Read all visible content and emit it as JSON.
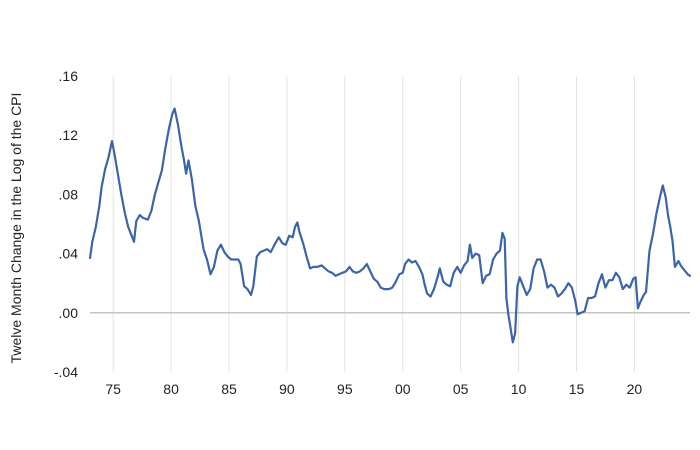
{
  "chart_data": {
    "type": "line",
    "title": "",
    "xlabel": "",
    "ylabel": "Twelve Month Change in the Log of the CPI",
    "xlim": [
      1973,
      2024.8
    ],
    "ylim": [
      -0.04,
      0.16
    ],
    "y_ticks": [
      -0.04,
      0.0,
      0.04,
      0.08,
      0.12,
      0.16
    ],
    "y_tick_labels": [
      "-.04",
      ".00",
      ".04",
      ".08",
      ".12",
      ".16"
    ],
    "x_ticks": [
      1975,
      1980,
      1985,
      1990,
      1995,
      2000,
      2005,
      2010,
      2015,
      2020
    ],
    "x_tick_labels": [
      "75",
      "80",
      "85",
      "90",
      "95",
      "00",
      "05",
      "10",
      "15",
      "20"
    ],
    "grid": "vertical",
    "zero_line": true,
    "colors": {
      "series": "#3b65a8",
      "grid": "#e3e3e3",
      "zero_line": "#c4c4c4"
    },
    "series": [
      {
        "values": [
          [
            1973.0,
            0.037
          ],
          [
            1973.2,
            0.048
          ],
          [
            1973.5,
            0.058
          ],
          [
            1973.8,
            0.072
          ],
          [
            1974.0,
            0.085
          ],
          [
            1974.3,
            0.097
          ],
          [
            1974.6,
            0.105
          ],
          [
            1974.9,
            0.116
          ],
          [
            1975.1,
            0.108
          ],
          [
            1975.4,
            0.094
          ],
          [
            1975.7,
            0.08
          ],
          [
            1976.0,
            0.068
          ],
          [
            1976.3,
            0.058
          ],
          [
            1976.6,
            0.052
          ],
          [
            1976.8,
            0.048
          ],
          [
            1977.0,
            0.062
          ],
          [
            1977.3,
            0.066
          ],
          [
            1977.6,
            0.064
          ],
          [
            1978.0,
            0.063
          ],
          [
            1978.3,
            0.069
          ],
          [
            1978.6,
            0.08
          ],
          [
            1978.9,
            0.088
          ],
          [
            1979.2,
            0.096
          ],
          [
            1979.5,
            0.111
          ],
          [
            1979.8,
            0.124
          ],
          [
            1980.1,
            0.134
          ],
          [
            1980.3,
            0.138
          ],
          [
            1980.6,
            0.127
          ],
          [
            1980.9,
            0.112
          ],
          [
            1981.1,
            0.104
          ],
          [
            1981.3,
            0.094
          ],
          [
            1981.5,
            0.103
          ],
          [
            1981.8,
            0.09
          ],
          [
            1982.1,
            0.072
          ],
          [
            1982.4,
            0.062
          ],
          [
            1982.8,
            0.043
          ],
          [
            1983.1,
            0.036
          ],
          [
            1983.4,
            0.026
          ],
          [
            1983.7,
            0.031
          ],
          [
            1984.0,
            0.042
          ],
          [
            1984.3,
            0.046
          ],
          [
            1984.6,
            0.041
          ],
          [
            1984.9,
            0.038
          ],
          [
            1985.2,
            0.036
          ],
          [
            1985.5,
            0.036
          ],
          [
            1985.8,
            0.036
          ],
          [
            1986.0,
            0.033
          ],
          [
            1986.3,
            0.018
          ],
          [
            1986.6,
            0.016
          ],
          [
            1986.9,
            0.012
          ],
          [
            1987.1,
            0.018
          ],
          [
            1987.4,
            0.038
          ],
          [
            1987.7,
            0.041
          ],
          [
            1988.0,
            0.042
          ],
          [
            1988.3,
            0.043
          ],
          [
            1988.6,
            0.041
          ],
          [
            1989.0,
            0.047
          ],
          [
            1989.3,
            0.051
          ],
          [
            1989.6,
            0.047
          ],
          [
            1989.9,
            0.046
          ],
          [
            1990.2,
            0.052
          ],
          [
            1990.5,
            0.051
          ],
          [
            1990.7,
            0.058
          ],
          [
            1990.9,
            0.061
          ],
          [
            1991.1,
            0.054
          ],
          [
            1991.4,
            0.047
          ],
          [
            1991.7,
            0.038
          ],
          [
            1992.0,
            0.03
          ],
          [
            1992.3,
            0.031
          ],
          [
            1992.6,
            0.031
          ],
          [
            1993.0,
            0.032
          ],
          [
            1993.3,
            0.03
          ],
          [
            1993.6,
            0.028
          ],
          [
            1993.9,
            0.027
          ],
          [
            1994.2,
            0.025
          ],
          [
            1994.5,
            0.026
          ],
          [
            1994.8,
            0.027
          ],
          [
            1995.1,
            0.028
          ],
          [
            1995.4,
            0.031
          ],
          [
            1995.7,
            0.028
          ],
          [
            1996.0,
            0.027
          ],
          [
            1996.3,
            0.028
          ],
          [
            1996.6,
            0.03
          ],
          [
            1996.9,
            0.033
          ],
          [
            1997.2,
            0.028
          ],
          [
            1997.5,
            0.023
          ],
          [
            1997.8,
            0.021
          ],
          [
            1998.1,
            0.017
          ],
          [
            1998.4,
            0.016
          ],
          [
            1998.8,
            0.016
          ],
          [
            1999.1,
            0.017
          ],
          [
            1999.4,
            0.021
          ],
          [
            1999.7,
            0.026
          ],
          [
            2000.0,
            0.027
          ],
          [
            2000.2,
            0.033
          ],
          [
            2000.5,
            0.036
          ],
          [
            2000.8,
            0.034
          ],
          [
            2001.1,
            0.035
          ],
          [
            2001.4,
            0.031
          ],
          [
            2001.7,
            0.026
          ],
          [
            2001.9,
            0.019
          ],
          [
            2002.1,
            0.013
          ],
          [
            2002.4,
            0.011
          ],
          [
            2002.7,
            0.016
          ],
          [
            2003.0,
            0.024
          ],
          [
            2003.2,
            0.03
          ],
          [
            2003.5,
            0.021
          ],
          [
            2003.8,
            0.019
          ],
          [
            2004.1,
            0.018
          ],
          [
            2004.4,
            0.027
          ],
          [
            2004.7,
            0.031
          ],
          [
            2005.0,
            0.027
          ],
          [
            2005.3,
            0.032
          ],
          [
            2005.6,
            0.035
          ],
          [
            2005.8,
            0.046
          ],
          [
            2006.0,
            0.037
          ],
          [
            2006.3,
            0.04
          ],
          [
            2006.6,
            0.039
          ],
          [
            2006.9,
            0.02
          ],
          [
            2007.2,
            0.025
          ],
          [
            2007.5,
            0.026
          ],
          [
            2007.8,
            0.036
          ],
          [
            2008.1,
            0.04
          ],
          [
            2008.4,
            0.042
          ],
          [
            2008.6,
            0.054
          ],
          [
            2008.8,
            0.05
          ],
          [
            2008.95,
            0.01
          ],
          [
            2009.1,
            0.0
          ],
          [
            2009.3,
            -0.01
          ],
          [
            2009.5,
            -0.02
          ],
          [
            2009.7,
            -0.014
          ],
          [
            2009.9,
            0.018
          ],
          [
            2010.1,
            0.024
          ],
          [
            2010.4,
            0.018
          ],
          [
            2010.7,
            0.012
          ],
          [
            2011.0,
            0.016
          ],
          [
            2011.3,
            0.03
          ],
          [
            2011.6,
            0.036
          ],
          [
            2011.9,
            0.036
          ],
          [
            2012.2,
            0.028
          ],
          [
            2012.5,
            0.017
          ],
          [
            2012.8,
            0.019
          ],
          [
            2013.1,
            0.017
          ],
          [
            2013.4,
            0.011
          ],
          [
            2013.7,
            0.013
          ],
          [
            2014.0,
            0.016
          ],
          [
            2014.3,
            0.02
          ],
          [
            2014.6,
            0.017
          ],
          [
            2014.9,
            0.008
          ],
          [
            2015.1,
            -0.001
          ],
          [
            2015.4,
            0.0
          ],
          [
            2015.7,
            0.001
          ],
          [
            2016.0,
            0.01
          ],
          [
            2016.3,
            0.01
          ],
          [
            2016.6,
            0.011
          ],
          [
            2016.9,
            0.02
          ],
          [
            2017.2,
            0.026
          ],
          [
            2017.5,
            0.017
          ],
          [
            2017.8,
            0.022
          ],
          [
            2018.1,
            0.022
          ],
          [
            2018.4,
            0.027
          ],
          [
            2018.7,
            0.024
          ],
          [
            2019.0,
            0.016
          ],
          [
            2019.3,
            0.019
          ],
          [
            2019.6,
            0.017
          ],
          [
            2019.9,
            0.023
          ],
          [
            2020.1,
            0.024
          ],
          [
            2020.3,
            0.003
          ],
          [
            2020.5,
            0.007
          ],
          [
            2020.8,
            0.012
          ],
          [
            2021.0,
            0.014
          ],
          [
            2021.3,
            0.042
          ],
          [
            2021.6,
            0.053
          ],
          [
            2021.9,
            0.067
          ],
          [
            2022.2,
            0.078
          ],
          [
            2022.45,
            0.086
          ],
          [
            2022.7,
            0.078
          ],
          [
            2022.9,
            0.066
          ],
          [
            2023.1,
            0.058
          ],
          [
            2023.3,
            0.048
          ],
          [
            2023.5,
            0.031
          ],
          [
            2023.8,
            0.035
          ],
          [
            2024.0,
            0.032
          ],
          [
            2024.3,
            0.029
          ],
          [
            2024.6,
            0.026
          ],
          [
            2024.8,
            0.025
          ]
        ]
      }
    ]
  }
}
